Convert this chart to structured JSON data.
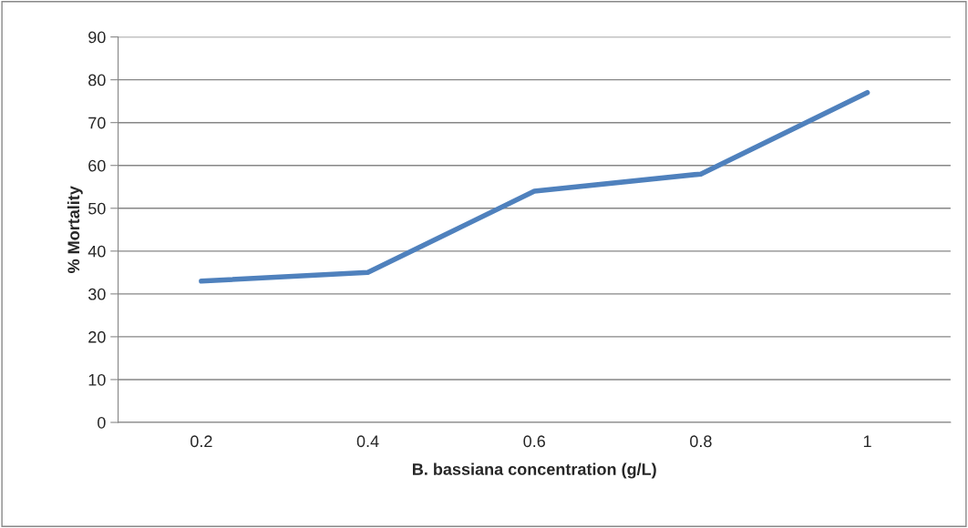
{
  "chart_data": {
    "type": "line",
    "xlabel": "B. bassiana concentration (g/L)",
    "ylabel": "% Mortality",
    "categories": [
      "0.2",
      "0.4",
      "0.6",
      "0.8",
      "1"
    ],
    "series": [
      {
        "color": "#4f81bd",
        "values": [
          33,
          35,
          54,
          58,
          77
        ]
      }
    ],
    "ylim": [
      0,
      90
    ],
    "yticks": [
      0,
      10,
      20,
      30,
      40,
      50,
      60,
      70,
      80,
      90
    ],
    "grid": "y",
    "marker": "none",
    "line_style": "solid"
  }
}
